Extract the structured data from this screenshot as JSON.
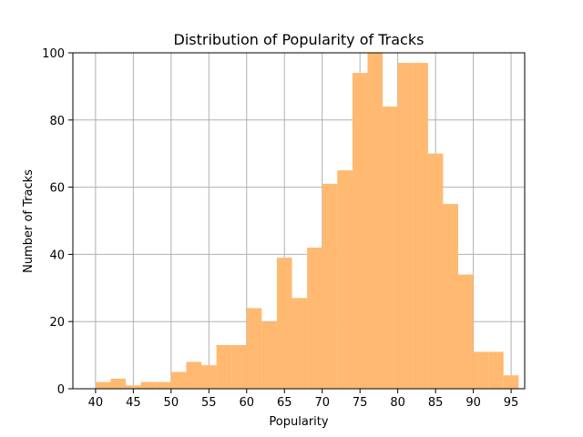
{
  "chart_data": {
    "type": "bar",
    "title": "Distribution of Popularity of Tracks",
    "xlabel": "Popularity",
    "ylabel": "Number of Tracks",
    "xlim": [
      37,
      96.8
    ],
    "ylim": [
      0,
      100
    ],
    "xticks": [
      40,
      45,
      50,
      55,
      60,
      65,
      70,
      75,
      80,
      85,
      90,
      95
    ],
    "yticks": [
      0,
      20,
      40,
      60,
      80,
      100
    ],
    "grid": true,
    "bar_color": "#ffb970",
    "bins": [
      {
        "x0": 40.0,
        "x1": 42.0,
        "count": 2
      },
      {
        "x0": 42.0,
        "x1": 44.0,
        "count": 3
      },
      {
        "x0": 44.0,
        "x1": 46.0,
        "count": 1
      },
      {
        "x0": 46.0,
        "x1": 48.0,
        "count": 2
      },
      {
        "x0": 48.0,
        "x1": 50.0,
        "count": 2
      },
      {
        "x0": 50.0,
        "x1": 52.0,
        "count": 5
      },
      {
        "x0": 52.0,
        "x1": 54.0,
        "count": 8
      },
      {
        "x0": 54.0,
        "x1": 56.0,
        "count": 7
      },
      {
        "x0": 56.0,
        "x1": 58.0,
        "count": 13
      },
      {
        "x0": 58.0,
        "x1": 60.0,
        "count": 13
      },
      {
        "x0": 60.0,
        "x1": 62.0,
        "count": 24
      },
      {
        "x0": 62.0,
        "x1": 64.0,
        "count": 20
      },
      {
        "x0": 64.0,
        "x1": 66.0,
        "count": 39
      },
      {
        "x0": 66.0,
        "x1": 68.0,
        "count": 27
      },
      {
        "x0": 68.0,
        "x1": 70.0,
        "count": 42
      },
      {
        "x0": 70.0,
        "x1": 72.0,
        "count": 61
      },
      {
        "x0": 72.0,
        "x1": 74.0,
        "count": 65
      },
      {
        "x0": 74.0,
        "x1": 76.0,
        "count": 94
      },
      {
        "x0": 76.0,
        "x1": 78.0,
        "count": 100
      },
      {
        "x0": 78.0,
        "x1": 80.0,
        "count": 84
      },
      {
        "x0": 80.0,
        "x1": 82.0,
        "count": 97
      },
      {
        "x0": 82.0,
        "x1": 84.0,
        "count": 97
      },
      {
        "x0": 84.0,
        "x1": 86.0,
        "count": 70
      },
      {
        "x0": 86.0,
        "x1": 88.0,
        "count": 55
      },
      {
        "x0": 88.0,
        "x1": 90.0,
        "count": 34
      },
      {
        "x0": 90.0,
        "x1": 92.0,
        "count": 11
      },
      {
        "x0": 92.0,
        "x1": 94.0,
        "count": 11
      },
      {
        "x0": 94.0,
        "x1": 96.0,
        "count": 4
      }
    ]
  }
}
